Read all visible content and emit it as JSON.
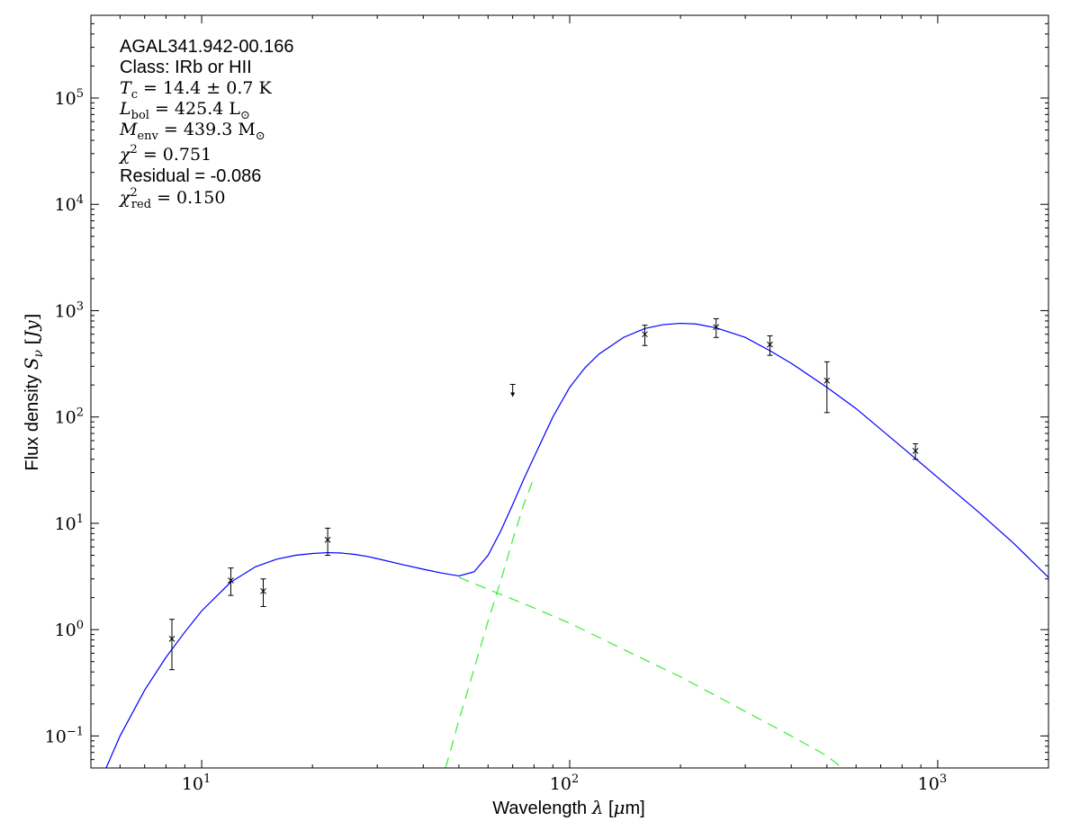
{
  "chart_data": {
    "type": "scatter",
    "xlabel": "Wavelength λ [μm]",
    "ylabel": "Flux density Sν [Jy]",
    "xscale": "log",
    "yscale": "log",
    "xlim": [
      5,
      2000
    ],
    "ylim": [
      0.05,
      600000
    ],
    "grid": false,
    "x_tick_labels": [
      {
        "value": 10,
        "base": "10",
        "exp": "1"
      },
      {
        "value": 100,
        "base": "10",
        "exp": "2"
      },
      {
        "value": 1000,
        "base": "10",
        "exp": "3"
      }
    ],
    "y_tick_labels": [
      {
        "value": 0.1,
        "base": "10",
        "exp": "−1"
      },
      {
        "value": 1,
        "base": "10",
        "exp": "0"
      },
      {
        "value": 10,
        "base": "10",
        "exp": "1"
      },
      {
        "value": 100,
        "base": "10",
        "exp": "2"
      },
      {
        "value": 1000,
        "base": "10",
        "exp": "3"
      },
      {
        "value": 10000,
        "base": "10",
        "exp": "4"
      },
      {
        "value": 100000,
        "base": "10",
        "exp": "5"
      }
    ],
    "annotations": {
      "source": "AGAL341.942-00.166",
      "class": "Class: IRb or HII",
      "tc": "Tc = 14.4 ± 0.7 K",
      "lbol": "Lbol = 425.4 L⊙",
      "menv": "Menv = 439.3 M⊙",
      "chi2": "χ2 = 0.751",
      "residual": "Residual = -0.086",
      "chi2red": "χ2red = 0.150"
    },
    "points": [
      {
        "x": 8.3,
        "y": 0.82,
        "ylo": 0.42,
        "yhi": 1.25
      },
      {
        "x": 12.0,
        "y": 2.9,
        "ylo": 2.1,
        "yhi": 3.8
      },
      {
        "x": 14.7,
        "y": 2.3,
        "ylo": 1.65,
        "yhi": 3.0
      },
      {
        "x": 22.0,
        "y": 7.0,
        "ylo": 5.0,
        "yhi": 9.0
      },
      {
        "x": 160,
        "y": 600,
        "ylo": 470,
        "yhi": 730
      },
      {
        "x": 250,
        "y": 700,
        "ylo": 560,
        "yhi": 840
      },
      {
        "x": 350,
        "y": 480,
        "ylo": 380,
        "yhi": 580
      },
      {
        "x": 500,
        "y": 220,
        "ylo": 110,
        "yhi": 330
      },
      {
        "x": 870,
        "y": 48,
        "ylo": 40,
        "yhi": 56
      }
    ],
    "upper_limits": [
      {
        "x": 70,
        "y": 170
      }
    ],
    "series": [
      {
        "role": "total-model",
        "color": "#0000ff",
        "style": "solid",
        "x": [
          5.5,
          6,
          7,
          8,
          9,
          10,
          12,
          14,
          16,
          18,
          20,
          22,
          24,
          26,
          28,
          30,
          35,
          40,
          45,
          50,
          55,
          60,
          65,
          70,
          75,
          80,
          90,
          100,
          110,
          120,
          140,
          160,
          180,
          200,
          220,
          250,
          300,
          350,
          400,
          500,
          600,
          800,
          1000,
          1300,
          1600,
          2000
        ],
        "y": [
          0.05,
          0.1,
          0.27,
          0.55,
          0.95,
          1.5,
          2.8,
          3.9,
          4.6,
          5.0,
          5.2,
          5.3,
          5.25,
          5.1,
          4.9,
          4.65,
          4.1,
          3.7,
          3.4,
          3.2,
          3.5,
          5.0,
          8.5,
          15,
          26,
          42,
          100,
          190,
          290,
          390,
          560,
          680,
          740,
          760,
          750,
          690,
          560,
          420,
          320,
          190,
          120,
          52,
          27,
          12.5,
          6.6,
          3.1
        ]
      },
      {
        "role": "warm-component",
        "color": "#33ee33",
        "style": "dashed",
        "x": [
          50,
          60,
          80,
          100,
          150,
          200,
          300,
          400,
          500,
          550
        ],
        "y": [
          3.1,
          2.4,
          1.6,
          1.15,
          0.58,
          0.36,
          0.17,
          0.1,
          0.065,
          0.05
        ]
      },
      {
        "role": "cold-component",
        "color": "#33ee33",
        "style": "dashed",
        "x": [
          46,
          50,
          55,
          60,
          65,
          70,
          75,
          80
        ],
        "y": [
          0.05,
          0.14,
          0.43,
          1.2,
          2.9,
          7.0,
          15,
          27
        ]
      }
    ]
  }
}
